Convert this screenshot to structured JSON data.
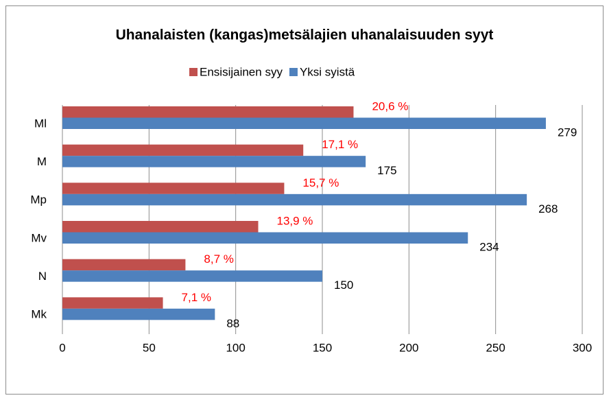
{
  "chart_data": {
    "type": "hbar",
    "title": "Uhanalaisten (kangas)metsälajien uhanalaisuuden syyt",
    "categories": [
      "Ml",
      "M",
      "Mp",
      "Mv",
      "N",
      "Mk"
    ],
    "series": [
      {
        "name": "Ensisijainen syy",
        "color": "#c0504d",
        "values": [
          168,
          139,
          128,
          113,
          71,
          58
        ],
        "labels": [
          "20,6 %",
          "17,1 %",
          "15,7 %",
          "13,9 %",
          "8,7 %",
          "7,1 %"
        ],
        "label_color": "#ff0000"
      },
      {
        "name": "Yksi syistä",
        "color": "#4f81bd",
        "values": [
          279,
          175,
          268,
          234,
          150,
          88
        ]
      }
    ],
    "xlim": [
      0,
      300
    ],
    "xticks": [
      0,
      50,
      100,
      150,
      200,
      250,
      300
    ],
    "grid": true,
    "legend": "top"
  }
}
